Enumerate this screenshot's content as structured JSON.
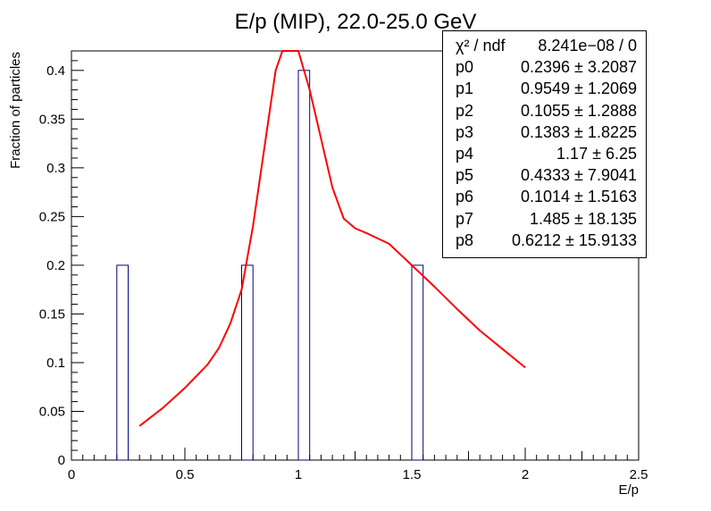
{
  "chart_data": {
    "type": "bar",
    "title": "E/p (MIP), 22.0-25.0 GeV",
    "xlabel": "E/p",
    "ylabel": "Fraction of particles",
    "xlim": [
      0,
      2.5
    ],
    "ylim": [
      0,
      0.42
    ],
    "x_ticks": [
      "0",
      "0.5",
      "1",
      "1.5",
      "2",
      "2.5"
    ],
    "y_ticks": [
      "0",
      "0.05",
      "0.1",
      "0.15",
      "0.2",
      "0.25",
      "0.3",
      "0.35",
      "0.4"
    ],
    "bin_width": 0.05,
    "bars": [
      {
        "x": 0.2,
        "value": 0.2
      },
      {
        "x": 0.75,
        "value": 0.2
      },
      {
        "x": 1.0,
        "value": 0.4
      },
      {
        "x": 1.5,
        "value": 0.2
      }
    ],
    "fit_curve": {
      "color": "#ff0000",
      "x": [
        0.3,
        0.4,
        0.5,
        0.6,
        0.65,
        0.7,
        0.75,
        0.8,
        0.85,
        0.9,
        0.93,
        1.0,
        1.05,
        1.1,
        1.15,
        1.2,
        1.25,
        1.3,
        1.4,
        1.5,
        1.6,
        1.7,
        1.8,
        1.9,
        2.0
      ],
      "y": [
        0.035,
        0.053,
        0.074,
        0.098,
        0.115,
        0.14,
        0.175,
        0.24,
        0.32,
        0.4,
        0.42,
        0.42,
        0.38,
        0.33,
        0.28,
        0.248,
        0.238,
        0.233,
        0.222,
        0.2,
        0.178,
        0.155,
        0.133,
        0.114,
        0.095
      ]
    },
    "bar_color": "#000080"
  },
  "stats": {
    "rows": [
      {
        "name": "χ² / ndf",
        "value": "8.241e−08 / 0"
      },
      {
        "name": "p0",
        "value": "0.2396 ± 3.2087"
      },
      {
        "name": "p1",
        "value": "0.9549 ± 1.2069"
      },
      {
        "name": "p2",
        "value": "0.1055 ± 1.2888"
      },
      {
        "name": "p3",
        "value": "0.1383 ± 1.8225"
      },
      {
        "name": "p4",
        "value": "1.17 ± 6.25"
      },
      {
        "name": "p5",
        "value": "0.4333 ± 7.9041"
      },
      {
        "name": "p6",
        "value": "0.1014 ± 1.5163"
      },
      {
        "name": "p7",
        "value": "1.485 ± 18.135"
      },
      {
        "name": "p8",
        "value": "0.6212 ± 15.9133"
      }
    ]
  }
}
